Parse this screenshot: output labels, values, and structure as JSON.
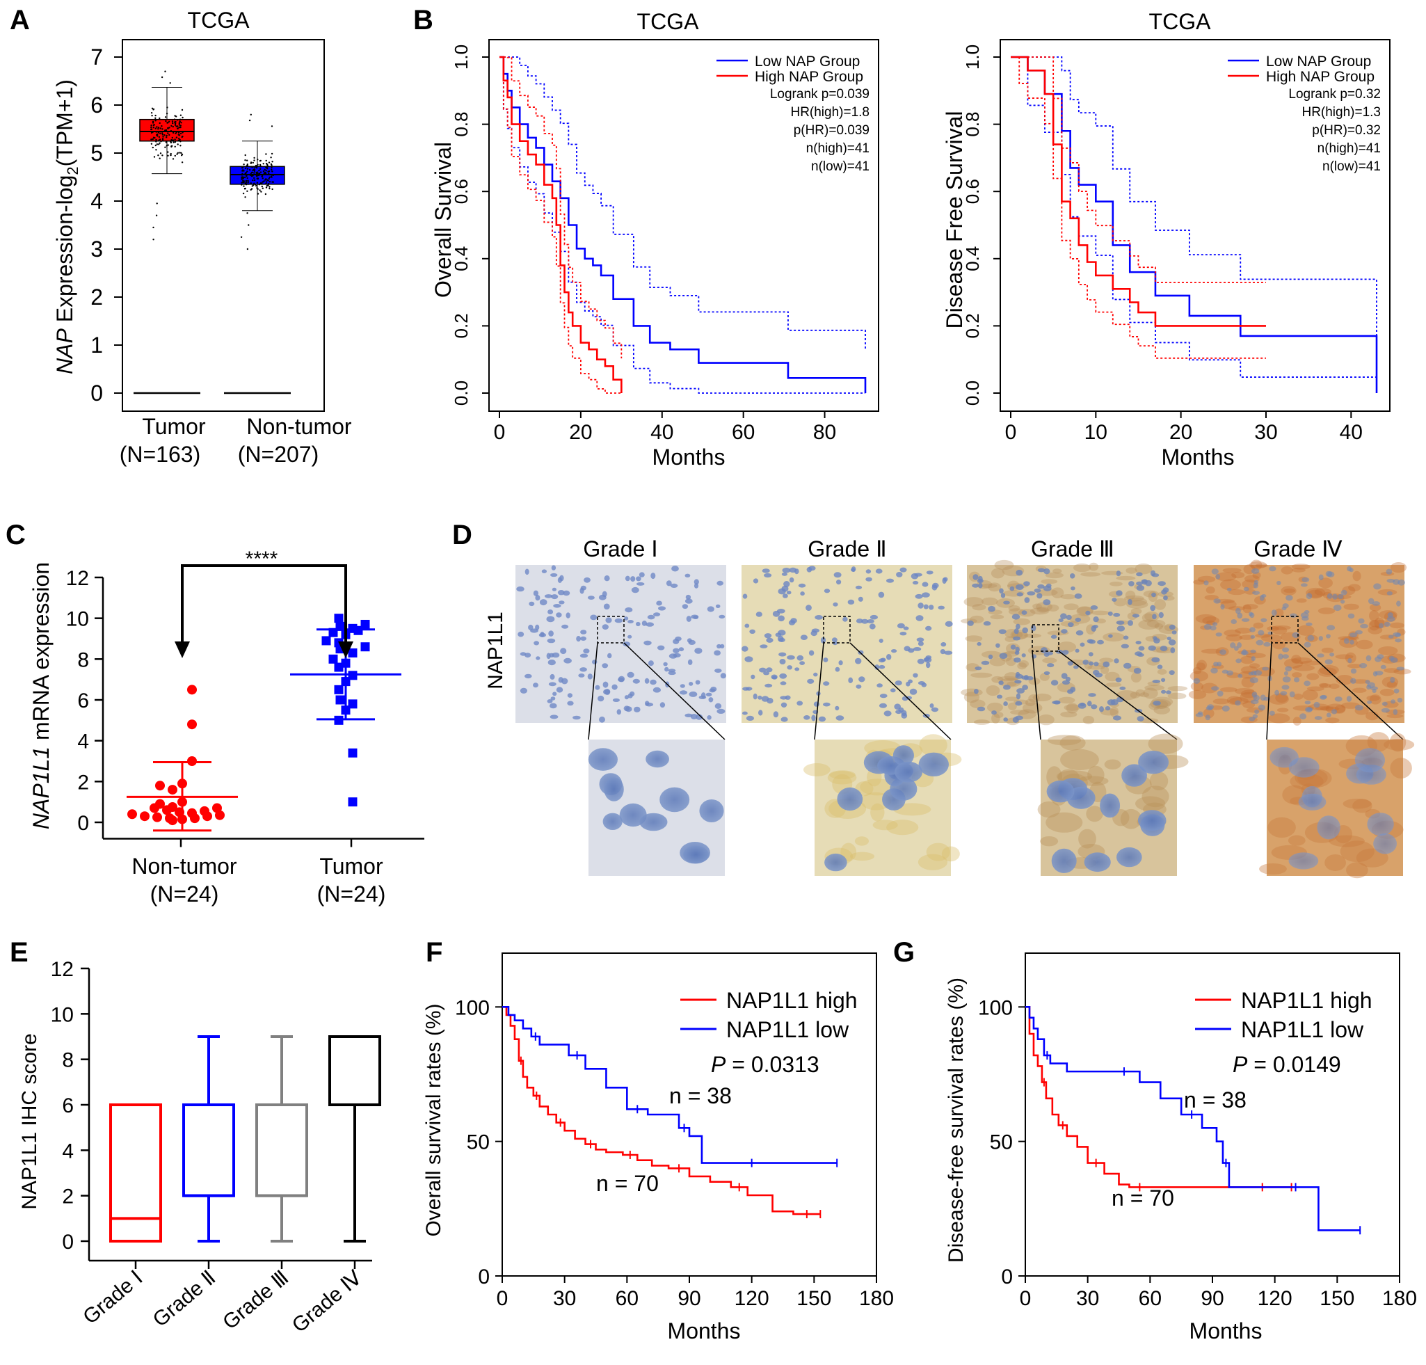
{
  "panels": {
    "A": {
      "letter": "A",
      "title": "TCGA",
      "ylabel_italic": "NAP",
      "ylabel_rest": " Expression-log",
      "ylabel_sub": "2",
      "ylabel_tail": "(TPM+1)",
      "yticks": [
        "0",
        "1",
        "2",
        "3",
        "4",
        "5",
        "6",
        "7"
      ],
      "groups": [
        {
          "name": "Tumor",
          "n": "(N=163)",
          "color": "#ff0000"
        },
        {
          "name": "Non-tumor",
          "n": "(N=207)",
          "color": "#0000ff"
        }
      ]
    },
    "B": {
      "letter": "B",
      "left": {
        "title": "TCGA",
        "ylabel": "Overall Survival",
        "xlabel": "Months",
        "xticks": [
          "0",
          "20",
          "40",
          "60",
          "80"
        ],
        "yticks": [
          "0.0",
          "0.2",
          "0.4",
          "0.6",
          "0.8",
          "1.0"
        ],
        "legend": [
          "Low NAP Group",
          "High NAP Group"
        ],
        "stats": [
          "Logrank p=0.039",
          "HR(high)=1.8",
          "p(HR)=0.039",
          "n(high)=41",
          "n(low)=41"
        ]
      },
      "right": {
        "title": "TCGA",
        "ylabel": "Disease Free Survival",
        "xlabel": "Months",
        "xticks": [
          "0",
          "10",
          "20",
          "30",
          "40"
        ],
        "yticks": [
          "0.0",
          "0.2",
          "0.4",
          "0.6",
          "0.8",
          "1.0"
        ],
        "legend": [
          "Low NAP Group",
          "High NAP Group"
        ],
        "stats": [
          "Logrank p=0.32",
          "HR(high)=1.3",
          "p(HR)=0.32",
          "n(high)=41",
          "n(low)=41"
        ]
      }
    },
    "C": {
      "letter": "C",
      "ylabel_italic": "NAP1L1",
      "ylabel_rest": " mRNA expression",
      "yticks": [
        "0",
        "2",
        "4",
        "6",
        "8",
        "10",
        "12"
      ],
      "sig": "****",
      "groups": [
        {
          "name": "Non-tumor",
          "n": "(N=24)"
        },
        {
          "name": "Tumor",
          "n": "(N=24)"
        }
      ]
    },
    "D": {
      "letter": "D",
      "row_label": "NAP1L1",
      "grades": [
        "Grade Ⅰ",
        "Grade Ⅱ",
        "Grade Ⅲ",
        "Grade Ⅳ"
      ]
    },
    "E": {
      "letter": "E",
      "ylabel": "NAP1L1 IHC score",
      "yticks": [
        "0",
        "2",
        "4",
        "6",
        "8",
        "10",
        "12"
      ],
      "categories": [
        "Grade Ⅰ",
        "Grade Ⅱ",
        "Grade Ⅲ",
        "Grade Ⅳ"
      ],
      "colors": [
        "#ff0000",
        "#0000ff",
        "#808080",
        "#000000"
      ]
    },
    "F": {
      "letter": "F",
      "ylabel": "Overall survival rates (%)",
      "xlabel": "Months",
      "xticks": [
        "0",
        "30",
        "60",
        "90",
        "120",
        "150",
        "180"
      ],
      "yticks": [
        "0",
        "50",
        "100"
      ],
      "legend": [
        "NAP1L1 high",
        "NAP1L1 low"
      ],
      "p_label": "P",
      "p_value": " = 0.0313",
      "n_low": "n = 38",
      "n_high": "n = 70"
    },
    "G": {
      "letter": "G",
      "ylabel": "Disease-free survival rates (%)",
      "xlabel": "Months",
      "xticks": [
        "0",
        "30",
        "60",
        "90",
        "120",
        "150",
        "180"
      ],
      "yticks": [
        "0",
        "50",
        "100"
      ],
      "legend": [
        "NAP1L1 high",
        "NAP1L1 low"
      ],
      "p_label": "P",
      "p_value": " = 0.0149",
      "n_low": "n = 38",
      "n_high": "n = 70"
    }
  },
  "chart_data": [
    {
      "type": "box",
      "title": "TCGA",
      "categories": [
        "Tumor",
        "Non-tumor"
      ],
      "ylim": [
        0,
        7
      ],
      "boxes": [
        {
          "name": "Tumor",
          "q1": 5.25,
          "median": 5.45,
          "q3": 5.7,
          "whisker_low": 4.57,
          "whisker_high": 6.37,
          "points_min": 3.2,
          "points_max": 6.7,
          "min_line": 0
        },
        {
          "name": "Non-tumor",
          "q1": 4.35,
          "median": 4.55,
          "q3": 4.72,
          "whisker_low": 3.8,
          "whisker_high": 5.25,
          "points_min": 3.0,
          "points_max": 5.8,
          "min_line": 0
        }
      ]
    },
    {
      "type": "line",
      "title": "TCGA",
      "xlabel": "Months",
      "ylabel": "Overall Survival",
      "xlim": [
        0,
        90
      ],
      "ylim": [
        0,
        1
      ],
      "series": [
        {
          "name": "Low NAP Group",
          "x": [
            0,
            1,
            2,
            3,
            5,
            7,
            9,
            11,
            13,
            15,
            17,
            19,
            21,
            23,
            25,
            28,
            33,
            37,
            42,
            49,
            71,
            90
          ],
          "y": [
            1.0,
            0.95,
            0.9,
            0.85,
            0.8,
            0.76,
            0.73,
            0.68,
            0.63,
            0.58,
            0.5,
            0.43,
            0.4,
            0.38,
            0.35,
            0.28,
            0.2,
            0.15,
            0.13,
            0.09,
            0.045,
            0.0
          ]
        },
        {
          "name": "High NAP Group",
          "x": [
            0,
            1,
            2,
            3,
            5,
            7,
            9,
            11,
            13,
            14,
            15,
            16,
            17,
            18,
            20,
            22,
            24,
            26,
            28,
            30
          ],
          "y": [
            1.0,
            0.93,
            0.88,
            0.8,
            0.75,
            0.71,
            0.68,
            0.62,
            0.58,
            0.5,
            0.38,
            0.3,
            0.24,
            0.2,
            0.15,
            0.13,
            0.1,
            0.08,
            0.04,
            0.0
          ]
        }
      ]
    },
    {
      "type": "line",
      "title": "TCGA",
      "xlabel": "Months",
      "ylabel": "Disease Free Survival",
      "xlim": [
        0,
        43
      ],
      "ylim": [
        0,
        1
      ],
      "series": [
        {
          "name": "Low NAP Group",
          "x": [
            0,
            2,
            4,
            6,
            7,
            8,
            10,
            12,
            14,
            17,
            21,
            27,
            32,
            43
          ],
          "y": [
            1.0,
            0.96,
            0.89,
            0.78,
            0.67,
            0.62,
            0.57,
            0.44,
            0.36,
            0.29,
            0.23,
            0.17,
            0.17,
            0.0
          ]
        },
        {
          "name": "High NAP Group",
          "x": [
            0,
            1,
            2,
            4,
            5,
            6,
            7,
            8,
            9,
            10,
            12,
            14,
            15,
            17,
            30
          ],
          "y": [
            1.0,
            1.0,
            0.96,
            0.89,
            0.74,
            0.57,
            0.52,
            0.44,
            0.39,
            0.35,
            0.31,
            0.27,
            0.24,
            0.2,
            0.2
          ]
        }
      ]
    },
    {
      "type": "scatter",
      "categories": [
        "Non-tumor",
        "Tumor"
      ],
      "ylim": [
        0,
        12
      ],
      "groups": [
        {
          "name": "Non-tumor",
          "mean": 1.25,
          "sd_low": -0.4,
          "sd_high": 2.95,
          "values": [
            6.5,
            4.8,
            3.0,
            1.9,
            1.8,
            1.6,
            1.0,
            0.9,
            0.75,
            0.7,
            0.7,
            0.6,
            0.55,
            0.5,
            0.45,
            0.4,
            0.35,
            0.3,
            0.3,
            0.25,
            0.2,
            0.2,
            0.15,
            0.1
          ]
        },
        {
          "name": "Tumor",
          "mean": 7.25,
          "sd_low": 5.05,
          "sd_high": 9.45,
          "values": [
            10.0,
            9.7,
            9.6,
            9.5,
            9.4,
            9.3,
            9.2,
            8.9,
            8.8,
            8.6,
            8.5,
            8.3,
            8.0,
            7.8,
            7.6,
            7.2,
            6.9,
            6.5,
            6.0,
            5.8,
            5.5,
            5.0,
            3.4,
            1.0
          ]
        }
      ]
    },
    {
      "type": "box",
      "ylabel": "NAP1L1 IHC score",
      "categories": [
        "Grade Ⅰ",
        "Grade Ⅱ",
        "Grade Ⅲ",
        "Grade Ⅳ"
      ],
      "ylim": [
        0,
        12
      ],
      "boxes": [
        {
          "name": "Grade Ⅰ",
          "min": 0,
          "q1": 0,
          "median": 1,
          "q3": 6,
          "max": 6
        },
        {
          "name": "Grade Ⅱ",
          "min": 0,
          "q1": 2,
          "median": 2,
          "q3": 6,
          "max": 9
        },
        {
          "name": "Grade Ⅲ",
          "min": 0,
          "q1": 2,
          "median": 2,
          "q3": 6,
          "max": 9
        },
        {
          "name": "Grade Ⅳ",
          "min": 0,
          "q1": 6,
          "median": 9,
          "q3": 9,
          "max": 9
        }
      ]
    },
    {
      "type": "line",
      "xlabel": "Months",
      "ylabel": "Overall survival rates (%)",
      "xlim": [
        0,
        180
      ],
      "ylim": [
        0,
        120
      ],
      "series": [
        {
          "name": "NAP1L1 high",
          "x": [
            0,
            2,
            4,
            6,
            8,
            10,
            12,
            15,
            18,
            22,
            26,
            30,
            35,
            40,
            45,
            50,
            58,
            65,
            72,
            80,
            90,
            100,
            110,
            118,
            130,
            140,
            153
          ],
          "y": [
            100,
            97,
            93,
            88,
            80,
            74,
            70,
            67,
            63,
            60,
            57,
            54,
            51,
            49,
            47,
            46,
            45,
            43,
            41,
            40,
            37,
            35,
            33,
            30,
            24,
            23,
            23
          ]
        },
        {
          "name": "NAP1L1 low",
          "x": [
            0,
            3,
            6,
            10,
            14,
            18,
            25,
            32,
            40,
            50,
            60,
            70,
            80,
            85,
            90,
            96,
            110,
            130,
            161
          ],
          "y": [
            100,
            97,
            95,
            92,
            89,
            86,
            86,
            82,
            77,
            70,
            62,
            60,
            60,
            55,
            52,
            42,
            42,
            42,
            42
          ]
        }
      ]
    },
    {
      "type": "line",
      "xlabel": "Months",
      "ylabel": "Disease-free survival rates (%)",
      "xlim": [
        0,
        180
      ],
      "ylim": [
        0,
        120
      ],
      "series": [
        {
          "name": "NAP1L1 high",
          "x": [
            0,
            2,
            4,
            6,
            8,
            10,
            13,
            16,
            20,
            25,
            30,
            38,
            45,
            50,
            60,
            80,
            100,
            128
          ],
          "y": [
            100,
            90,
            82,
            78,
            72,
            66,
            60,
            56,
            52,
            48,
            42,
            38,
            34,
            33,
            33,
            33,
            33,
            33
          ]
        },
        {
          "name": "NAP1L1 low",
          "x": [
            0,
            2,
            4,
            6,
            9,
            12,
            20,
            40,
            55,
            65,
            75,
            85,
            92,
            95,
            98,
            110,
            120,
            140,
            141,
            161
          ],
          "y": [
            100,
            96,
            92,
            88,
            82,
            79,
            76,
            76,
            72,
            66,
            60,
            55,
            50,
            42,
            33,
            33,
            33,
            33,
            17,
            17
          ]
        }
      ]
    }
  ]
}
